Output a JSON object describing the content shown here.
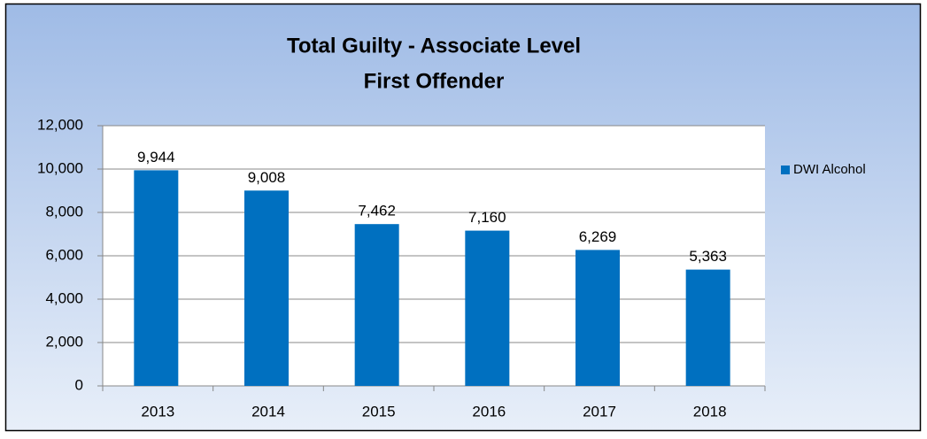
{
  "chart_data": {
    "type": "bar",
    "title": "Total Guilty - Associate Level",
    "subtitle": "First Offender",
    "categories": [
      "2013",
      "2014",
      "2015",
      "2016",
      "2017",
      "2018"
    ],
    "series": [
      {
        "name": "DWI Alcohol",
        "color": "#0070c0",
        "values": [
          9944,
          9008,
          7462,
          7160,
          6269,
          5363
        ],
        "value_labels": [
          "9,944",
          "9,008",
          "7,462",
          "7,160",
          "6,269",
          "5,363"
        ]
      }
    ],
    "ylim": [
      0,
      12000
    ],
    "yticks": [
      0,
      {
        "value": 2000,
        "label": "2,000"
      },
      {
        "value": 4000,
        "label": "4,000"
      },
      {
        "value": 6000,
        "label": "6,000"
      },
      {
        "value": 8000,
        "label": "8,000"
      },
      {
        "value": 10000,
        "label": "10,000"
      },
      {
        "value": 12000,
        "label": "12,000"
      }
    ],
    "grid": true,
    "legend": "right"
  }
}
